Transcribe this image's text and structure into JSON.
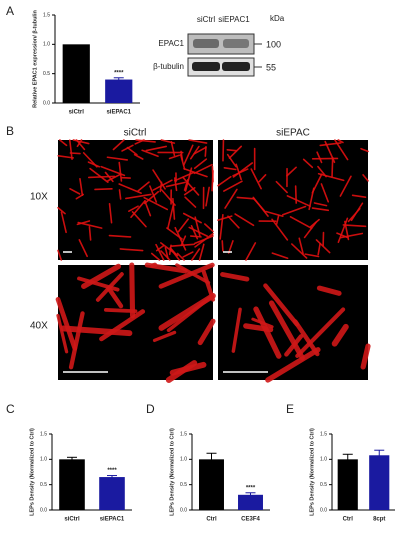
{
  "panels": [
    "A",
    "B",
    "C",
    "D",
    "E"
  ],
  "blot": {
    "lanes": [
      "siCtrl",
      "siEPAC1"
    ],
    "unit": "kDa",
    "bands": [
      {
        "label": "EPAC1",
        "size": "100"
      },
      {
        "label": "β-tubulin",
        "size": "55"
      }
    ]
  },
  "micrographs": {
    "columns": [
      "siCtrl",
      "siEPAC"
    ],
    "rows": [
      "10X",
      "40X"
    ]
  },
  "chart_data": [
    {
      "type": "bar",
      "y_label": "Relative EPAC1 expression/ β-tubulin",
      "categories": [
        "siCtrl",
        "siEPAC1"
      ],
      "values": [
        1.0,
        0.4
      ],
      "errors": [
        0,
        0.03
      ],
      "colors": [
        "#000000",
        "#1a1aa0"
      ],
      "value_annotations": [
        null,
        "****"
      ],
      "ylim": [
        0,
        1.5
      ],
      "yticks": [
        {
          "value": 0,
          "label": "0.0"
        },
        {
          "value": 0.5,
          "label": "0.5"
        },
        {
          "value": 1,
          "label": "1.0"
        },
        {
          "value": 1.5,
          "label": "1.5"
        }
      ]
    },
    {
      "type": "bar",
      "y_label": "LEPs Density (Normalized to Ctrl)",
      "categories": [
        "siCtrl",
        "siEPAC1"
      ],
      "values": [
        1.0,
        0.65
      ],
      "errors": [
        0.04,
        0.03
      ],
      "colors": [
        "#000000",
        "#1a1aa0"
      ],
      "value_annotations": [
        null,
        "****"
      ],
      "ylim": [
        0,
        1.5
      ],
      "yticks": [
        {
          "value": 0,
          "label": "0.0"
        },
        {
          "value": 0.5,
          "label": "0.5"
        },
        {
          "value": 1,
          "label": "1.0"
        },
        {
          "value": 1.5,
          "label": "1.5"
        }
      ]
    },
    {
      "type": "bar",
      "y_label": "LEPs Density (Normalized to Ctrl)",
      "categories": [
        "Ctrl",
        "CE3F4"
      ],
      "values": [
        1.0,
        0.3
      ],
      "errors": [
        0.12,
        0.04
      ],
      "colors": [
        "#000000",
        "#1a1aa0"
      ],
      "value_annotations": [
        null,
        "****"
      ],
      "ylim": [
        0,
        1.5
      ],
      "yticks": [
        {
          "value": 0,
          "label": "0.0"
        },
        {
          "value": 0.5,
          "label": "0.5"
        },
        {
          "value": 1,
          "label": "1.0"
        },
        {
          "value": 1.5,
          "label": "1.5"
        }
      ]
    },
    {
      "type": "bar",
      "y_label": "LEPs Density (Normalized to Ctrl)",
      "categories": [
        "Ctrl",
        "8cpt"
      ],
      "values": [
        1.0,
        1.08
      ],
      "errors": [
        0.1,
        0.1
      ],
      "colors": [
        "#000000",
        "#1a1aa0"
      ],
      "ylim": [
        0,
        1.5
      ],
      "yticks": [
        {
          "value": 0,
          "label": "0.0"
        },
        {
          "value": 0.5,
          "label": "0.5"
        },
        {
          "value": 1,
          "label": "1.0"
        },
        {
          "value": 1.5,
          "label": "1.5"
        }
      ]
    }
  ]
}
